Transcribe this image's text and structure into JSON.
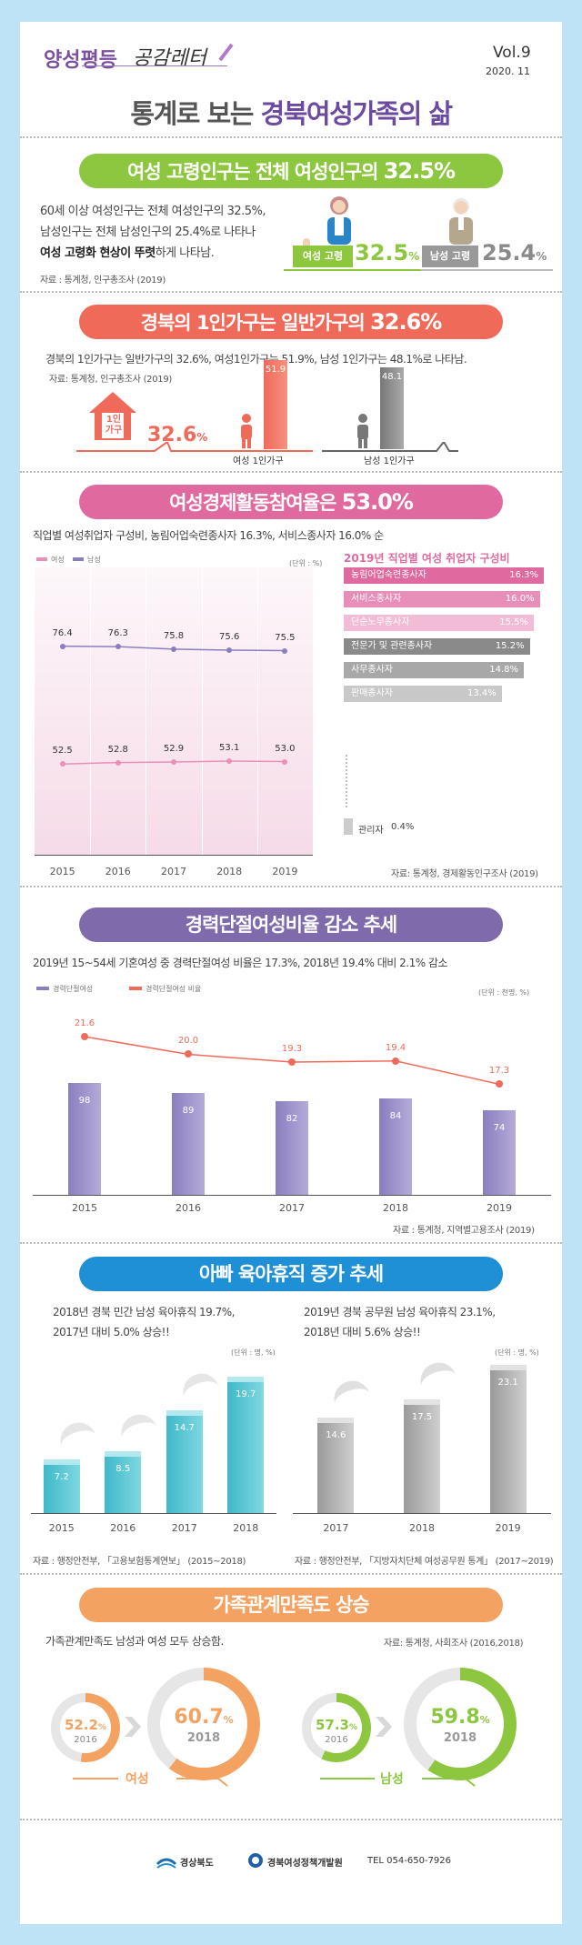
{
  "header": {
    "brand_a": "양성평등",
    "brand_b": "공감레터",
    "vol": "Vol.9",
    "date": "2020. 11",
    "title_a": "통계로 보는",
    "title_b": "경북여성가족의 삶"
  },
  "s1": {
    "title_a": "여성 고령인구는 전체 여성인구의",
    "title_b": "32.5%",
    "l1": "60세 이상 여성인구는 전체 여성인구의 32.5%,",
    "l2": "남성인구는 전체 남성인구의 25.4%로 나타나",
    "l3a": "여성 고령화 현상이 뚜렷",
    "l3b": "하게 나타남.",
    "source": "자료 : 통계청, 인구총조사 (2019)",
    "female_label": "여성 고령",
    "female_value": "32.5",
    "male_label": "남성 고령",
    "male_value": "25.4",
    "pct": "%"
  },
  "s2": {
    "title_a": "경북의 1인가구는 일반가구의",
    "title_b": "32.6%",
    "line": "경북의 1인가구는 일반가구의 32.6%, 여성1인가구는 51.9%, 남성 1인가구는 48.1%로 나타남.",
    "source": "자료: 통계청, 인구총조사 (2019)",
    "house_text": "1인\n가구",
    "total": "32.6",
    "pct": "%",
    "female_value": "51.9",
    "male_value": "48.1",
    "female_label": "여성 1인가구",
    "male_label": "남성 1인가구"
  },
  "s3": {
    "title_a": "여성경제활동참여율은",
    "title_b": "53.0%",
    "line": "직업별 여성취업자 구성비, 농림어업숙련종사자 16.3%, 서비스종사자 16.0% 순",
    "legend_f": "여성",
    "legend_m": "남성",
    "unit": "(단위 : %)",
    "years": [
      "2015",
      "2016",
      "2017",
      "2018",
      "2019"
    ],
    "male": [
      76.4,
      76.3,
      75.8,
      75.6,
      75.5
    ],
    "female": [
      52.5,
      52.8,
      52.9,
      53.1,
      53.0
    ],
    "job_title": "2019년 직업별 여성 취업자 구성비",
    "jobs": [
      {
        "name": "농림어업숙련종사자",
        "value": "16.3%",
        "frac": 1.0,
        "color": "#e06aa0"
      },
      {
        "name": "서비스종사자",
        "value": "16.0%",
        "frac": 0.98,
        "color": "#e88fb9"
      },
      {
        "name": "단순노무종사자",
        "value": "15.5%",
        "frac": 0.95,
        "color": "#f2bcd6"
      },
      {
        "name": "전문가 및 관련종사자",
        "value": "15.2%",
        "frac": 0.93,
        "color": "#8a8a8a"
      },
      {
        "name": "사무종사자",
        "value": "14.8%",
        "frac": 0.9,
        "color": "#a8a8a8"
      },
      {
        "name": "판매종사자",
        "value": "13.4%",
        "frac": 0.79,
        "color": "#c8c8c8"
      }
    ],
    "admin_label": "관리자",
    "admin_value": "0.4%",
    "source": "자료: 통계청, 경제활동인구조사 (2019)"
  },
  "s4": {
    "title": "경력단절여성비율 감소 추세",
    "line": "2019년 15~54세 기혼여성 중 경력단절여성 비율은 17.3%, 2018년 19.4% 대비 2.1% 감소",
    "legend_a": "경력단절여성",
    "legend_b": "경력단절여성 비율",
    "unit": "(단위 : 천명, %)",
    "years": [
      "2015",
      "2016",
      "2017",
      "2018",
      "2019"
    ],
    "counts": [
      98,
      89,
      82,
      84,
      74
    ],
    "rates": [
      21.6,
      20.0,
      19.3,
      19.4,
      17.3
    ],
    "source": "자료 : 통계청, 지역별고용조사 (2019)"
  },
  "s5": {
    "title": "아빠 육아휴직 증가 추세",
    "left_l1": "2018년 경북 민간 남성 육아휴직 19.7%,",
    "left_l2": "2017년 대비 5.0% 상승!!",
    "right_l1": "2019년 경북 공무원 남성 육아휴직 23.1%,",
    "right_l2": "2018년 대비 5.6% 상승!!",
    "unit": "(단위 : 명, %)",
    "left_years": [
      "2015",
      "2016",
      "2017",
      "2018"
    ],
    "left_values": [
      7.2,
      8.5,
      14.7,
      19.7
    ],
    "right_years": [
      "2017",
      "2018",
      "2019"
    ],
    "right_values": [
      14.6,
      17.5,
      23.1
    ],
    "left_source": "자료 : 행정안전부, 「고용보험통계연보」 (2015~2018)",
    "right_source": "자료 : 행정안전부, 「지방자치단체 여성공무원 통계」 (2017~2019)"
  },
  "s6": {
    "title": "가족관계만족도 상승",
    "line": "가족관계만족도 남성과 여성 모두 상승함.",
    "source": "자료: 통계청, 사회조사 (2016,2018)",
    "f_2016": "52.2",
    "f_2018": "60.7",
    "m_2016": "57.3",
    "m_2018": "59.8",
    "pct": "%",
    "y2016": "2016",
    "y2018": "2018",
    "female": "여성",
    "male": "남성"
  },
  "footer": {
    "org1": "경상북도",
    "org2": "경북여성정책개발원",
    "tel": "TEL 054-650-7926"
  },
  "colors": {
    "green": "#8dc63f",
    "coral": "#f06a5a",
    "pink": "#e06aa0",
    "purple": "#7f6aac",
    "blue": "#1f8fd6",
    "orange": "#f4a261"
  }
}
